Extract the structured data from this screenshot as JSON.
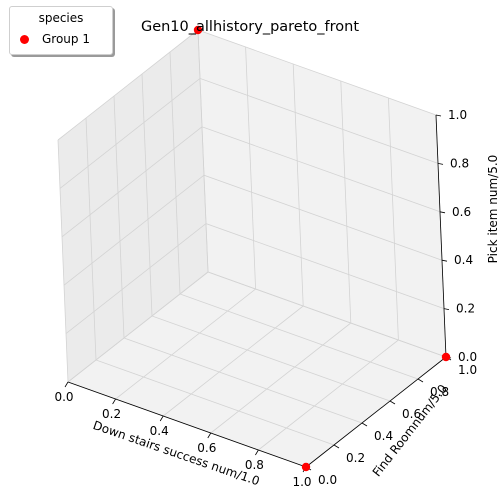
{
  "chart_data": {
    "type": "scatter",
    "projection": "3d",
    "title": "Gen10_allhistory_pareto_front",
    "xlabel": "Down stairs success num/1.0",
    "ylabel": "Find Roomnum/5.0",
    "zlabel": "Pick item num/5.0",
    "xlim": [
      0,
      1
    ],
    "ylim": [
      0,
      1
    ],
    "zlim": [
      0,
      1
    ],
    "xticks": [
      "0.0",
      "0.2",
      "0.4",
      "0.6",
      "0.8",
      "1.0"
    ],
    "yticks": [
      "0.0",
      "0.2",
      "0.4",
      "0.6",
      "0.8",
      "1.0"
    ],
    "zticks": [
      "0.0",
      "0.2",
      "0.4",
      "0.6",
      "0.8",
      "1.0"
    ],
    "grid": true,
    "legend": {
      "title": "species",
      "position": "top-left"
    },
    "series": [
      {
        "name": "Group 1",
        "color": "#ff0000",
        "points": [
          {
            "x": 0.0,
            "y": 1.0,
            "z": 1.0
          },
          {
            "x": 1.0,
            "y": 1.0,
            "z": 0.0
          },
          {
            "x": 1.0,
            "y": 0.0,
            "z": 0.0
          }
        ]
      }
    ]
  }
}
